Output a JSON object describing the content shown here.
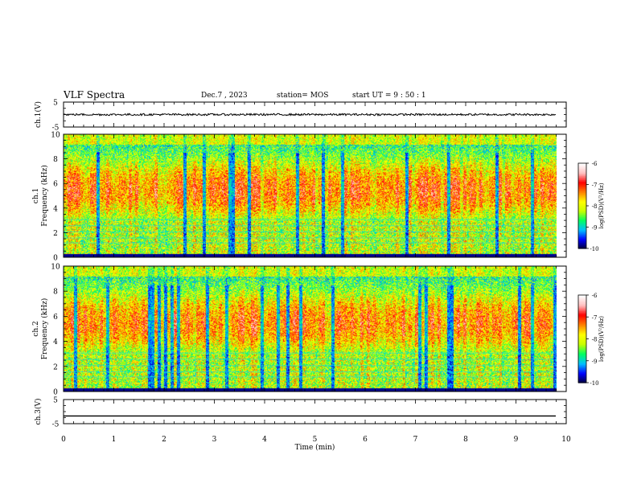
{
  "header": {
    "title": "VLF Spectra",
    "date": "Dec.7 , 2023",
    "station": "station= MOS",
    "start": "start UT = 9 : 50 : 1"
  },
  "chart_data": [
    {
      "type": "line",
      "ylabel": "ch.1(V)",
      "ylim": [
        -5,
        5
      ],
      "yticks": [
        "5",
        "-5"
      ],
      "description_values": {
        "mean": 0,
        "noise_amplitude": 0.4
      },
      "x_range": [
        0,
        9.8
      ]
    },
    {
      "type": "heatmap",
      "ylabel": "ch.1\nFrequency (kHz)",
      "ylabel_lines": [
        "ch.1",
        "Frequency (kHz)"
      ],
      "ylim": [
        0,
        10
      ],
      "yticks": [
        "0",
        "2",
        "4",
        "6",
        "8",
        "10"
      ],
      "colorbar": {
        "label": "log(PSD)(V²/Hz)",
        "ticks": [
          "-6",
          "-7",
          "-8",
          "-9",
          "-10"
        ],
        "range": [
          -10,
          -6
        ]
      },
      "x_range": [
        0,
        9.8
      ]
    },
    {
      "type": "heatmap",
      "ylabel_lines": [
        "ch.2",
        "Frequency (kHz)"
      ],
      "ylim": [
        0,
        10
      ],
      "yticks": [
        "0",
        "2",
        "4",
        "6",
        "8",
        "10"
      ],
      "colorbar": {
        "label": "log(PSD)(V²/Hz)",
        "ticks": [
          "-6",
          "-7",
          "-8",
          "-9",
          "-10"
        ],
        "range": [
          -10,
          -6
        ]
      },
      "x_range": [
        0,
        9.8
      ]
    },
    {
      "type": "line",
      "ylabel": "ch.3(V)",
      "ylim": [
        -5,
        5
      ],
      "yticks": [
        "5",
        "-5"
      ],
      "description_values": {
        "mean": -1.8,
        "noise_amplitude": 0
      },
      "x_range": [
        0,
        9.8
      ]
    }
  ],
  "xaxis": {
    "label": "Time (min)",
    "ticks": [
      "0",
      "1",
      "2",
      "3",
      "4",
      "5",
      "6",
      "7",
      "8",
      "9",
      "10"
    ],
    "xlim": [
      0,
      10
    ]
  },
  "colors": {
    "colormap": [
      "#000033",
      "#0000ff",
      "#00c0ff",
      "#00ff60",
      "#c8ff00",
      "#ffff00",
      "#ff8000",
      "#ff0000",
      "#ffc0c0",
      "#ffffff"
    ]
  }
}
